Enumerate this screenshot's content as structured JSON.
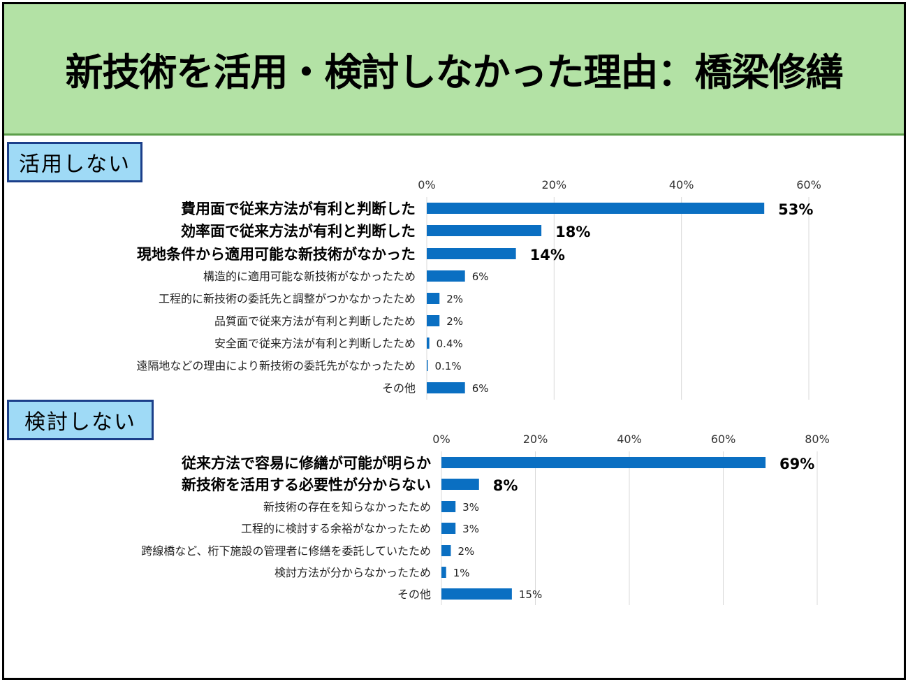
{
  "title": "新技術を活用・検討しなかった理由：橋梁修繕",
  "colors": {
    "header_bg": "#b3e2a5",
    "label_bg": "#9fdaf6",
    "bar": "#0a6fc2",
    "grid": "#d9d9d9"
  },
  "chart_data": [
    {
      "type": "bar",
      "orientation": "horizontal",
      "title": "活用しない",
      "xlim": [
        0,
        60
      ],
      "ticks": [
        "0%",
        "20%",
        "40%",
        "60%"
      ],
      "tick_values": [
        0,
        20,
        40,
        60
      ],
      "grid": true,
      "categories": [
        "費用面で従来方法が有利と判断した",
        "効率面で従来方法が有利と判断した",
        "現地条件から適用可能な新技術がなかった",
        "構造的に適用可能な新技術がなかったため",
        "工程的に新技術の委託先と調整がつかなかったため",
        "品質面で従来方法が有利と判断したため",
        "安全面で従来方法が有利と判断したため",
        "遠隔地などの理由により新技術の委託先がなかったため",
        "その他"
      ],
      "values": [
        53,
        18,
        14,
        6,
        2,
        2,
        0.4,
        0.1,
        6
      ],
      "value_labels": [
        "53%",
        "18%",
        "14%",
        "6%",
        "2%",
        "2%",
        "0.4%",
        "0.1%",
        "6%"
      ],
      "emphasis": [
        true,
        true,
        true,
        false,
        false,
        false,
        false,
        false,
        false
      ]
    },
    {
      "type": "bar",
      "orientation": "horizontal",
      "title": "検討しない",
      "xlim": [
        0,
        80
      ],
      "ticks": [
        "0%",
        "20%",
        "40%",
        "60%",
        "80%"
      ],
      "tick_values": [
        0,
        20,
        40,
        60,
        80
      ],
      "grid": true,
      "categories": [
        "従来方法で容易に修繕が可能が明らか",
        "新技術を活用する必要性が分からない",
        "新技術の存在を知らなかったため",
        "工程的に検討する余裕がなかったため",
        "跨線橋など、桁下施設の管理者に修繕を委託していたため",
        "検討方法が分からなかったため",
        "その他"
      ],
      "values": [
        69,
        8,
        3,
        3,
        2,
        1,
        15
      ],
      "value_labels": [
        "69%",
        "8%",
        "3%",
        "3%",
        "2%",
        "1%",
        "15%"
      ],
      "emphasis": [
        true,
        true,
        false,
        false,
        false,
        false,
        false
      ]
    }
  ]
}
